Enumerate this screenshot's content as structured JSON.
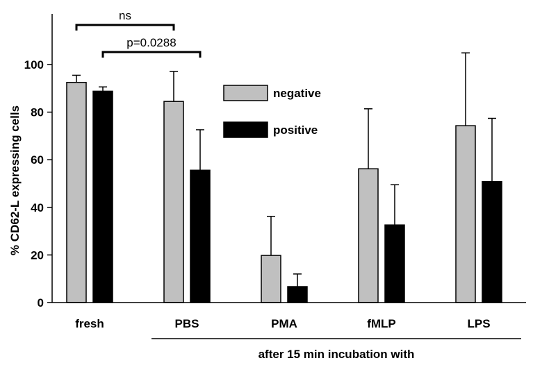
{
  "chart_data": {
    "type": "bar",
    "categories": [
      "fresh",
      "PBS",
      "PMA",
      "fMLP",
      "LPS"
    ],
    "series": [
      {
        "name": "negative",
        "color": "#c0c0c0",
        "values": [
          92.5,
          84.5,
          19.8,
          56.2,
          74.3
        ],
        "errors": [
          3.0,
          12.6,
          16.4,
          25.2,
          30.6
        ]
      },
      {
        "name": "positive",
        "color": "#000000",
        "values": [
          88.8,
          55.6,
          6.7,
          32.6,
          50.8
        ],
        "errors": [
          1.8,
          17.0,
          5.3,
          16.9,
          26.6
        ]
      }
    ],
    "ylabel": "% CD62-L expressing cells",
    "xlabel": "after 15 min incubation with",
    "ylim": [
      0,
      115
    ],
    "yticks": [
      0,
      20,
      40,
      60,
      80,
      100
    ],
    "legend_placement": "right of center",
    "annotations": [
      {
        "text": "ns",
        "from": {
          "category": "fresh",
          "series": "negative"
        },
        "to": {
          "category": "PBS",
          "series": "negative"
        }
      },
      {
        "text": "p=0.0288",
        "from": {
          "category": "fresh",
          "series": "positive"
        },
        "to": {
          "category": "PBS",
          "series": "positive"
        }
      }
    ],
    "xlabel_spans": [
      "PBS",
      "PMA",
      "fMLP",
      "LPS"
    ]
  }
}
